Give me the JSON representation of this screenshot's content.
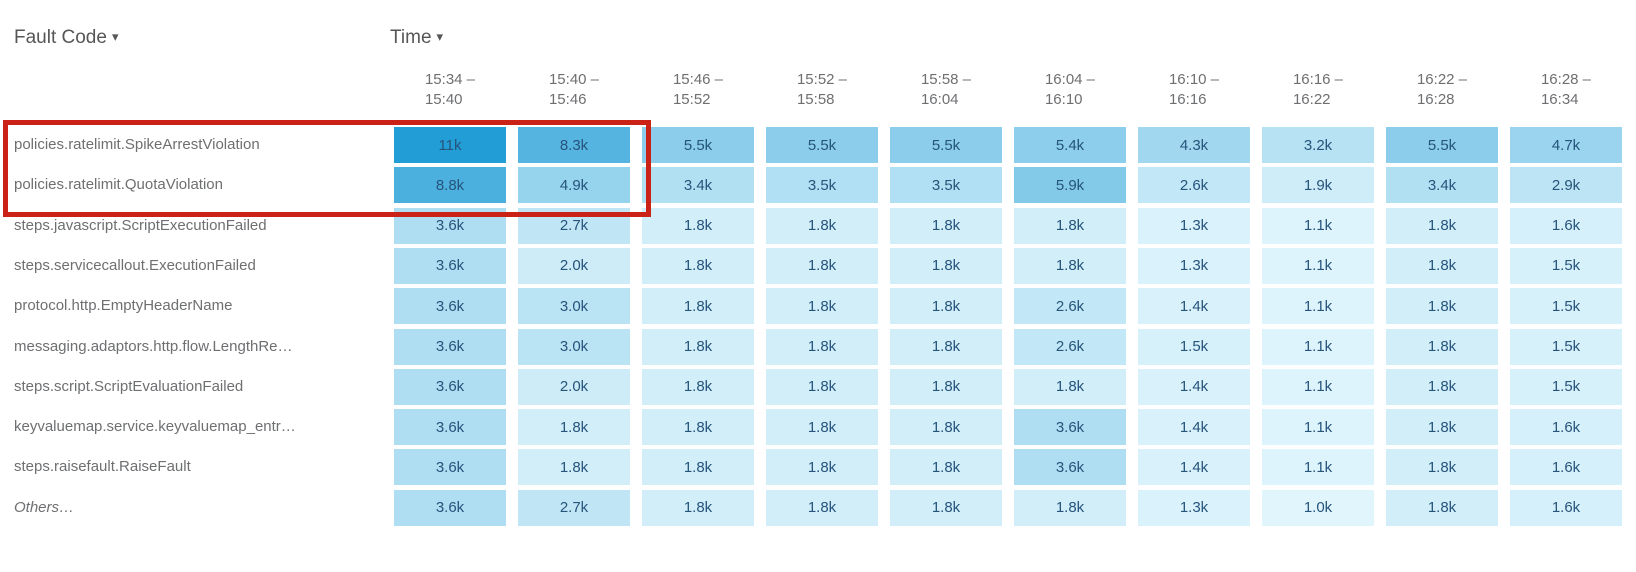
{
  "header": {
    "row_dimension": "Fault Code",
    "column_dimension": "Time"
  },
  "icons": {
    "dropdown_caret": "▾"
  },
  "annotation": {
    "highlight_box_color": "#cb2217"
  },
  "chart_data": {
    "type": "heatmap",
    "x_axis_label": "Time",
    "y_axis_label": "Fault Code",
    "legend": "none",
    "columns": [
      {
        "start": "15:34",
        "end": "15:40"
      },
      {
        "start": "15:40",
        "end": "15:46"
      },
      {
        "start": "15:46",
        "end": "15:52"
      },
      {
        "start": "15:52",
        "end": "15:58"
      },
      {
        "start": "15:58",
        "end": "16:04"
      },
      {
        "start": "16:04",
        "end": "16:10"
      },
      {
        "start": "16:10",
        "end": "16:16"
      },
      {
        "start": "16:16",
        "end": "16:22"
      },
      {
        "start": "16:22",
        "end": "16:28"
      },
      {
        "start": "16:28",
        "end": "16:34"
      }
    ],
    "rows": [
      {
        "label": "policies.ratelimit.SpikeArrestViolation",
        "italic": false,
        "values": [
          "11k",
          "8.3k",
          "5.5k",
          "5.5k",
          "5.5k",
          "5.4k",
          "4.3k",
          "3.2k",
          "5.5k",
          "4.7k"
        ]
      },
      {
        "label": "policies.ratelimit.QuotaViolation",
        "italic": false,
        "values": [
          "8.8k",
          "4.9k",
          "3.4k",
          "3.5k",
          "3.5k",
          "5.9k",
          "2.6k",
          "1.9k",
          "3.4k",
          "2.9k"
        ]
      },
      {
        "label": "steps.javascript.ScriptExecutionFailed",
        "italic": false,
        "values": [
          "3.6k",
          "2.7k",
          "1.8k",
          "1.8k",
          "1.8k",
          "1.8k",
          "1.3k",
          "1.1k",
          "1.8k",
          "1.6k"
        ]
      },
      {
        "label": "steps.servicecallout.ExecutionFailed",
        "italic": false,
        "values": [
          "3.6k",
          "2.0k",
          "1.8k",
          "1.8k",
          "1.8k",
          "1.8k",
          "1.3k",
          "1.1k",
          "1.8k",
          "1.5k"
        ]
      },
      {
        "label": "protocol.http.EmptyHeaderName",
        "italic": false,
        "values": [
          "3.6k",
          "3.0k",
          "1.8k",
          "1.8k",
          "1.8k",
          "2.6k",
          "1.4k",
          "1.1k",
          "1.8k",
          "1.5k"
        ]
      },
      {
        "label": "messaging.adaptors.http.flow.LengthRe…",
        "italic": false,
        "values": [
          "3.6k",
          "3.0k",
          "1.8k",
          "1.8k",
          "1.8k",
          "2.6k",
          "1.5k",
          "1.1k",
          "1.8k",
          "1.5k"
        ]
      },
      {
        "label": "steps.script.ScriptEvaluationFailed",
        "italic": false,
        "values": [
          "3.6k",
          "2.0k",
          "1.8k",
          "1.8k",
          "1.8k",
          "1.8k",
          "1.4k",
          "1.1k",
          "1.8k",
          "1.5k"
        ]
      },
      {
        "label": "keyvaluemap.service.keyvaluemap_entr…",
        "italic": false,
        "values": [
          "3.6k",
          "1.8k",
          "1.8k",
          "1.8k",
          "1.8k",
          "3.6k",
          "1.4k",
          "1.1k",
          "1.8k",
          "1.6k"
        ]
      },
      {
        "label": "steps.raisefault.RaiseFault",
        "italic": false,
        "values": [
          "3.6k",
          "1.8k",
          "1.8k",
          "1.8k",
          "1.8k",
          "3.6k",
          "1.4k",
          "1.1k",
          "1.8k",
          "1.6k"
        ]
      },
      {
        "label": "Others…",
        "italic": true,
        "values": [
          "3.6k",
          "2.7k",
          "1.8k",
          "1.8k",
          "1.8k",
          "1.8k",
          "1.3k",
          "1.0k",
          "1.8k",
          "1.6k"
        ]
      }
    ],
    "color_scale": {
      "min_value": 1000,
      "max_value": 11000,
      "min_color": "#e0f5fc",
      "max_color": "#229dd6"
    },
    "cell_text_color": "#26547b"
  }
}
